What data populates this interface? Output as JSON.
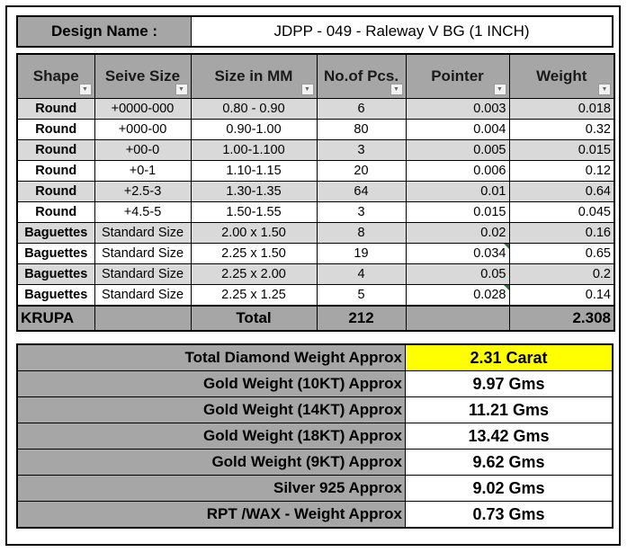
{
  "design": {
    "label": "Design Name :",
    "value": "JDPP - 049 - Raleway V BG (1 INCH)"
  },
  "table": {
    "headers": [
      "Shape",
      "Seive Size",
      "Size in MM",
      "No.of Pcs.",
      "Pointer",
      "Weight"
    ],
    "rows": [
      [
        "Round",
        "+0000-000",
        "0.80 - 0.90",
        "6",
        "0.003",
        "0.018"
      ],
      [
        "Round",
        "+000-00",
        "0.90-1.00",
        "80",
        "0.004",
        "0.32"
      ],
      [
        "Round",
        "+00-0",
        "1.00-1.100",
        "3",
        "0.005",
        "0.015"
      ],
      [
        "Round",
        "+0-1",
        "1.10-1.15",
        "20",
        "0.006",
        "0.12"
      ],
      [
        "Round",
        "+2.5-3",
        "1.30-1.35",
        "64",
        "0.01",
        "0.64"
      ],
      [
        "Round",
        "+4.5-5",
        "1.50-1.55",
        "3",
        "0.015",
        "0.045"
      ],
      [
        "Baguettes",
        "Standard Size",
        "2.00 x 1.50",
        "8",
        "0.02",
        "0.16"
      ],
      [
        "Baguettes",
        "Standard Size",
        "2.25 x 1.50",
        "19",
        "0.034",
        "0.65"
      ],
      [
        "Baguettes",
        "Standard Size",
        "2.25 x 2.00",
        "4",
        "0.05",
        "0.2"
      ],
      [
        "Baguettes",
        "Standard Size",
        "2.25 x 1.25",
        "5",
        "0.028",
        "0.14"
      ]
    ],
    "total": {
      "brand": "KRUPA",
      "label": "Total",
      "pcs": "212",
      "weight": "2.308"
    }
  },
  "summary": [
    {
      "label": "Total Diamond Weight Approx",
      "value": "2.31 Carat",
      "highlight": "#ffff00"
    },
    {
      "label": "Gold Weight (10KT) Approx",
      "value": "9.97 Gms"
    },
    {
      "label": "Gold Weight (14KT) Approx",
      "value": "11.21 Gms"
    },
    {
      "label": "Gold Weight (18KT) Approx",
      "value": "13.42 Gms"
    },
    {
      "label": "Gold Weight (9KT) Approx",
      "value": "9.62 Gms"
    },
    {
      "label": "Silver 925 Approx",
      "value": "9.02 Gms"
    },
    {
      "label": "RPT /WAX - Weight Approx",
      "value": "0.73 Gms"
    }
  ]
}
